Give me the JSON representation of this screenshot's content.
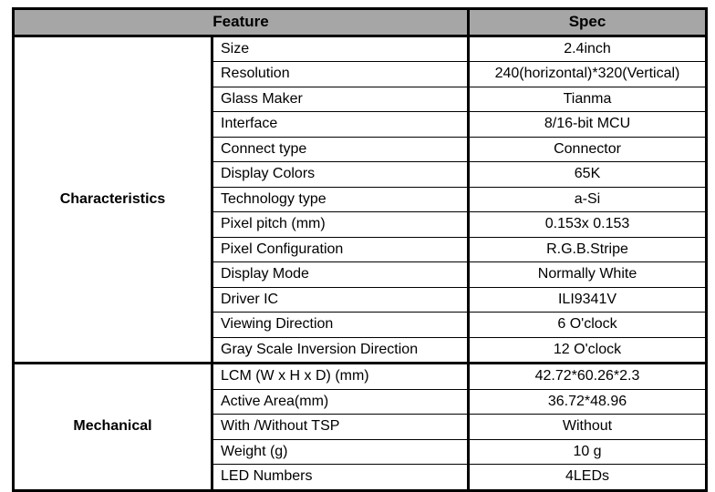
{
  "header": {
    "feature": "Feature",
    "spec": "Spec"
  },
  "groups": [
    {
      "name": "Characteristics",
      "rows": [
        {
          "feature": "Size",
          "spec": "2.4inch"
        },
        {
          "feature": "Resolution",
          "spec": "240(horizontal)*320(Vertical)"
        },
        {
          "feature": "Glass Maker",
          "spec": "Tianma"
        },
        {
          "feature": "Interface",
          "spec": "8/16-bit MCU"
        },
        {
          "feature": "Connect type",
          "spec": "Connector"
        },
        {
          "feature": "Display Colors",
          "spec": "65K"
        },
        {
          "feature": "Technology type",
          "spec": "a-Si"
        },
        {
          "feature": "Pixel pitch (mm)",
          "spec": "0.153x 0.153"
        },
        {
          "feature": "Pixel Configuration",
          "spec": "R.G.B.Stripe"
        },
        {
          "feature": "Display Mode",
          "spec": "Normally White"
        },
        {
          "feature": "Driver IC",
          "spec": "ILI9341V"
        },
        {
          "feature": "Viewing Direction",
          "spec": "6 O'clock"
        },
        {
          "feature": "Gray Scale Inversion Direction",
          "spec": "12 O'clock"
        }
      ]
    },
    {
      "name": "Mechanical",
      "rows": [
        {
          "feature": "LCM (W x H x D) (mm)",
          "spec": "42.72*60.26*2.3"
        },
        {
          "feature": "Active Area(mm)",
          "spec": "36.72*48.96"
        },
        {
          "feature": "With /Without TSP",
          "spec": "Without"
        },
        {
          "feature": "Weight (g)",
          "spec": "10 g"
        },
        {
          "feature": "LED Numbers",
          "spec": "4LEDs"
        }
      ]
    }
  ]
}
